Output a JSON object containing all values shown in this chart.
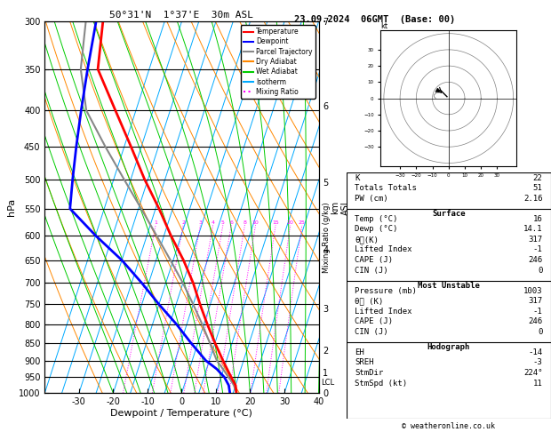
{
  "title_left": "50°31'N  1°37'E  30m ASL",
  "title_right": "23.09.2024  06GMT  (Base: 00)",
  "xlabel": "Dewpoint / Temperature (°C)",
  "ylabel_left": "hPa",
  "copyright": "© weatheronline.co.uk",
  "pressure_ticks": [
    300,
    350,
    400,
    450,
    500,
    550,
    600,
    650,
    700,
    750,
    800,
    850,
    900,
    950,
    1000
  ],
  "temp_range": [
    -40,
    40
  ],
  "temp_ticks": [
    -30,
    -20,
    -10,
    0,
    10,
    20,
    30,
    40
  ],
  "isotherm_temps": [
    -40,
    -35,
    -30,
    -25,
    -20,
    -15,
    -10,
    -5,
    0,
    5,
    10,
    15,
    20,
    25,
    30,
    35,
    40
  ],
  "isotherm_color": "#00aaff",
  "dry_adiabat_color": "#ff8800",
  "wet_adiabat_color": "#00cc00",
  "mixing_ratio_color": "#ff00ff",
  "mixing_ratio_values": [
    1,
    2,
    3,
    4,
    5,
    6,
    8,
    10,
    15,
    20,
    25
  ],
  "temp_profile_color": "#ff0000",
  "dewp_profile_color": "#0000ff",
  "parcel_color": "#888888",
  "legend_items": [
    {
      "label": "Temperature",
      "color": "#ff0000",
      "style": "solid"
    },
    {
      "label": "Dewpoint",
      "color": "#0000ff",
      "style": "solid"
    },
    {
      "label": "Parcel Trajectory",
      "color": "#888888",
      "style": "solid"
    },
    {
      "label": "Dry Adiabat",
      "color": "#ff8800",
      "style": "solid"
    },
    {
      "label": "Wet Adiabat",
      "color": "#00cc00",
      "style": "solid"
    },
    {
      "label": "Isotherm",
      "color": "#00aaff",
      "style": "solid"
    },
    {
      "label": "Mixing Ratio",
      "color": "#ff00ff",
      "style": "dotted"
    }
  ],
  "stats": {
    "K": 22,
    "Totals_Totals": 51,
    "PW_cm": 2.16,
    "Surface_Temp": 16,
    "Surface_Dewp": 14.1,
    "Surface_theta_e": 317,
    "Surface_LI": -1,
    "Surface_CAPE": 246,
    "Surface_CIN": 0,
    "MU_Pressure": 1003,
    "MU_theta_e": 317,
    "MU_LI": -1,
    "MU_CAPE": 246,
    "MU_CIN": 0,
    "Hodo_EH": -14,
    "Hodo_SREH": -3,
    "Hodo_StmDir": 224,
    "Hodo_StmSpd": 11
  },
  "temp_data": {
    "pressure": [
      1000,
      975,
      950,
      925,
      900,
      850,
      800,
      750,
      700,
      650,
      600,
      550,
      500,
      450,
      400,
      350,
      300
    ],
    "temp": [
      16,
      15,
      13,
      11,
      9,
      5,
      1,
      -3,
      -7,
      -12,
      -18,
      -24,
      -31,
      -38,
      -46,
      -55,
      -58
    ]
  },
  "dewp_data": {
    "pressure": [
      1000,
      975,
      950,
      925,
      900,
      850,
      800,
      750,
      700,
      650,
      600,
      550,
      500,
      450,
      400,
      350,
      300
    ],
    "dewp": [
      14.1,
      13,
      11,
      8,
      4,
      -2,
      -8,
      -15,
      -22,
      -30,
      -40,
      -50,
      -52,
      -54,
      -56,
      -58,
      -60
    ]
  },
  "parcel_data": {
    "pressure": [
      1000,
      975,
      960,
      950,
      925,
      900,
      850,
      800,
      750,
      700,
      650,
      600,
      550,
      500,
      450,
      400,
      350,
      300
    ],
    "temp": [
      16,
      14.5,
      13.2,
      12.2,
      9.8,
      7.2,
      3.5,
      -0.5,
      -5.0,
      -10.0,
      -15.8,
      -22.2,
      -29.2,
      -37.0,
      -45.5,
      -54.5,
      -60,
      -63
    ]
  },
  "lcl_pressure": 962,
  "km_pressures": [
    1000,
    927,
    856,
    737,
    598,
    468,
    356,
    263
  ],
  "km_values": [
    0,
    1,
    2,
    3,
    4,
    5,
    6,
    7
  ],
  "background_color": "#ffffff"
}
